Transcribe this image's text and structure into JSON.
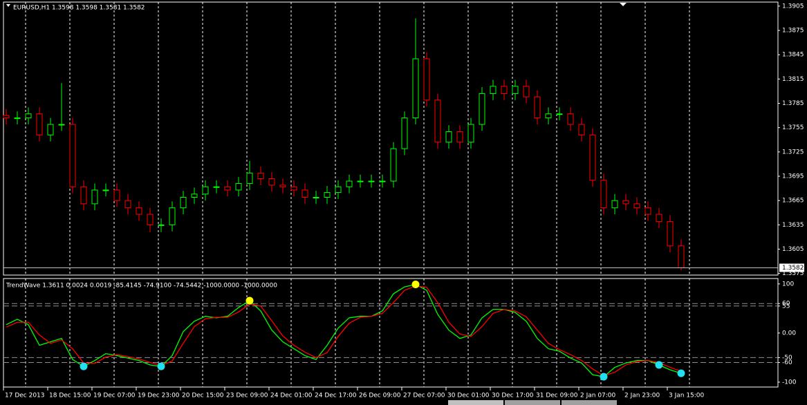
{
  "chart_data": [
    {
      "type": "candlestick",
      "title": "EURUSD,H1 1.3598 1.3598 1.3581 1.3582",
      "x": [
        0,
        4,
        8,
        12,
        16,
        20,
        24,
        28,
        32,
        36,
        40,
        44,
        48,
        52,
        56,
        60,
        64,
        68,
        72,
        76,
        80,
        84,
        88,
        92,
        96,
        100,
        104,
        108,
        112,
        116,
        120,
        124,
        128,
        132,
        136,
        140,
        144,
        148,
        152,
        156,
        160,
        164,
        168,
        172,
        176,
        180,
        184,
        188,
        192,
        196,
        200,
        204,
        208,
        212,
        216,
        220,
        224,
        228,
        232,
        236,
        240,
        244
      ],
      "open": [
        1.377,
        1.3767,
        1.3767,
        1.3772,
        1.3746,
        1.3759,
        1.3759,
        1.3682,
        1.3661,
        1.3678,
        1.3678,
        1.3665,
        1.3656,
        1.3648,
        1.3635,
        1.3635,
        1.3656,
        1.3669,
        1.3673,
        1.3682,
        1.3682,
        1.3678,
        1.3686,
        1.3699,
        1.3692,
        1.3684,
        1.3682,
        1.3678,
        1.3669,
        1.3669,
        1.3675,
        1.3682,
        1.3689,
        1.3689,
        1.3689,
        1.3689,
        1.3729,
        1.3767,
        1.384,
        1.3789,
        1.3737,
        1.375,
        1.3737,
        1.3759,
        1.3797,
        1.3806,
        1.3797,
        1.3806,
        1.3793,
        1.3767,
        1.3772,
        1.3772,
        1.3759,
        1.3746,
        1.369,
        1.3656,
        1.3665,
        1.3661,
        1.3656,
        1.3648,
        1.3639,
        1.3609
      ],
      "high": [
        1.3778,
        1.3775,
        1.378,
        1.378,
        1.3767,
        1.381,
        1.3767,
        1.369,
        1.3686,
        1.3686,
        1.3686,
        1.3673,
        1.3664,
        1.3656,
        1.3643,
        1.3664,
        1.3677,
        1.3681,
        1.369,
        1.369,
        1.369,
        1.3694,
        1.3714,
        1.3707,
        1.37,
        1.3692,
        1.369,
        1.3686,
        1.3677,
        1.3683,
        1.369,
        1.3697,
        1.3697,
        1.3697,
        1.3697,
        1.3737,
        1.3775,
        1.389,
        1.3848,
        1.3797,
        1.3758,
        1.3758,
        1.3767,
        1.3805,
        1.3814,
        1.3814,
        1.3814,
        1.3814,
        1.3801,
        1.378,
        1.378,
        1.378,
        1.3767,
        1.3754,
        1.3698,
        1.3673,
        1.3673,
        1.3669,
        1.3664,
        1.3656,
        1.3647,
        1.3617
      ],
      "low": [
        1.3759,
        1.3759,
        1.3759,
        1.3738,
        1.3738,
        1.3751,
        1.3674,
        1.3653,
        1.3653,
        1.367,
        1.3657,
        1.3648,
        1.364,
        1.3626,
        1.3626,
        1.3627,
        1.3648,
        1.3661,
        1.3665,
        1.3674,
        1.367,
        1.367,
        1.3678,
        1.3684,
        1.3676,
        1.3674,
        1.367,
        1.3661,
        1.3661,
        1.3661,
        1.3667,
        1.3674,
        1.3681,
        1.3681,
        1.3681,
        1.3681,
        1.3721,
        1.3759,
        1.3781,
        1.3729,
        1.3729,
        1.3729,
        1.3729,
        1.3751,
        1.3789,
        1.3789,
        1.3789,
        1.3785,
        1.3759,
        1.3759,
        1.3764,
        1.3751,
        1.3738,
        1.3682,
        1.3648,
        1.3648,
        1.3653,
        1.3648,
        1.364,
        1.3631,
        1.3601,
        1.3579
      ],
      "close": [
        1.3767,
        1.3767,
        1.3772,
        1.3746,
        1.3759,
        1.3759,
        1.3682,
        1.3661,
        1.3678,
        1.3678,
        1.3665,
        1.3656,
        1.3648,
        1.3635,
        1.3635,
        1.3656,
        1.3669,
        1.3673,
        1.3682,
        1.3682,
        1.3678,
        1.3686,
        1.3699,
        1.3692,
        1.3684,
        1.3682,
        1.3678,
        1.3669,
        1.3669,
        1.3675,
        1.3682,
        1.3689,
        1.3689,
        1.3689,
        1.3689,
        1.3729,
        1.3767,
        1.384,
        1.3789,
        1.3737,
        1.375,
        1.3737,
        1.3759,
        1.3797,
        1.3806,
        1.3797,
        1.3806,
        1.3793,
        1.3767,
        1.3772,
        1.3772,
        1.3759,
        1.3746,
        1.369,
        1.3656,
        1.3665,
        1.3661,
        1.3656,
        1.3648,
        1.3639,
        1.3609,
        1.3582
      ],
      "up_color": "#00ff00",
      "down_color": "#ff0000",
      "xlim": [
        -1,
        279
      ],
      "xticks": [
        {
          "value": 7,
          "label": "17 Dec 2013"
        },
        {
          "value": 23,
          "label": "18 Dec 15:00"
        },
        {
          "value": 39,
          "label": "19 Dec 07:00"
        },
        {
          "value": 55,
          "label": "19 Dec 23:00"
        },
        {
          "value": 71,
          "label": "20 Dec 15:00"
        },
        {
          "value": 87,
          "label": "23 Dec 09:00"
        },
        {
          "value": 103,
          "label": "24 Dec 01:00"
        },
        {
          "value": 119,
          "label": "24 Dec 17:00"
        },
        {
          "value": 135,
          "label": "26 Dec 09:00"
        },
        {
          "value": 151,
          "label": "27 Dec 07:00"
        },
        {
          "value": 167,
          "label": "30 Dec 01:00"
        },
        {
          "value": 183,
          "label": "30 Dec 17:00"
        },
        {
          "value": 199,
          "label": "31 Dec 09:00"
        },
        {
          "value": 215,
          "label": "2 Jan 07:00"
        },
        {
          "value": 231,
          "label": "2 Jan 23:00"
        },
        {
          "value": 247,
          "label": "3 Jan 15:00"
        }
      ],
      "ylim": [
        1.3573,
        1.391
      ],
      "yticks": [
        1.3905,
        1.3875,
        1.3845,
        1.3815,
        1.3785,
        1.3755,
        1.3725,
        1.3695,
        1.3665,
        1.3635,
        1.3605,
        1.3575
      ],
      "grid": true,
      "current_price": 1.3582
    },
    {
      "type": "line",
      "title": "TrendWave 1.3611 0.0024 0.0019 -85.4145 -74.9100 -74.5442 -1000.0000 -1000.0000",
      "x": [
        0,
        4,
        8,
        12,
        16,
        20,
        24,
        28,
        32,
        36,
        40,
        44,
        48,
        52,
        56,
        60,
        64,
        68,
        72,
        76,
        80,
        84,
        88,
        92,
        96,
        100,
        104,
        108,
        112,
        116,
        120,
        124,
        128,
        132,
        136,
        140,
        144,
        148,
        152,
        156,
        160,
        164,
        168,
        172,
        176,
        180,
        184,
        188,
        192,
        196,
        200,
        204,
        208,
        212,
        216,
        220,
        224,
        228,
        232,
        236,
        240,
        244
      ],
      "series": [
        {
          "color": "#00ff00",
          "values": [
            17,
            28,
            17,
            -25,
            -18,
            -11,
            -54,
            -68,
            -56,
            -42,
            -46,
            -51,
            -56,
            -65,
            -68,
            -46,
            3,
            24,
            34,
            31,
            34,
            52,
            66,
            45,
            6,
            -18,
            -32,
            -46,
            -54,
            -25,
            10,
            31,
            34,
            34,
            45,
            80,
            94,
            99,
            87,
            38,
            6,
            -11,
            -4,
            31,
            48,
            48,
            42,
            24,
            -11,
            -32,
            -37,
            -51,
            -61,
            -85,
            -89,
            -70,
            -61,
            -56,
            -56,
            -65,
            -75,
            -82
          ]
        },
        {
          "color": "#ff0000",
          "values": [
            12,
            22,
            22,
            -4,
            -21,
            -14,
            -32,
            -61,
            -62,
            -49,
            -44,
            -48,
            -53,
            -60,
            -66,
            -57,
            -21,
            13,
            29,
            32,
            32,
            43,
            59,
            55,
            25,
            -6,
            -25,
            -39,
            -50,
            -40,
            -7,
            20,
            32,
            34,
            40,
            62,
            87,
            96,
            93,
            62,
            22,
            -2,
            -7,
            13,
            40,
            48,
            45,
            33,
            6,
            -21,
            -34,
            -44,
            -56,
            -73,
            -87,
            -80,
            -65,
            -58,
            -56,
            -60,
            -70,
            -78
          ]
        }
      ],
      "signals": [
        {
          "color": "#ffff00",
          "x": [
            88,
            148
          ],
          "values": [
            66,
            99
          ]
        },
        {
          "color": "#22e0f0",
          "x": [
            28,
            56,
            216,
            236,
            244
          ],
          "values": [
            -68,
            -68,
            -89,
            -65,
            -82
          ]
        }
      ],
      "xlim": [
        -1,
        279
      ],
      "ylim": [
        -110,
        111
      ],
      "yticks": [
        100,
        60,
        55,
        {
          "value": 0,
          "label": "0.00"
        },
        -50,
        -60,
        -100
      ],
      "levels": [
        60,
        55,
        -50,
        -60
      ]
    }
  ]
}
